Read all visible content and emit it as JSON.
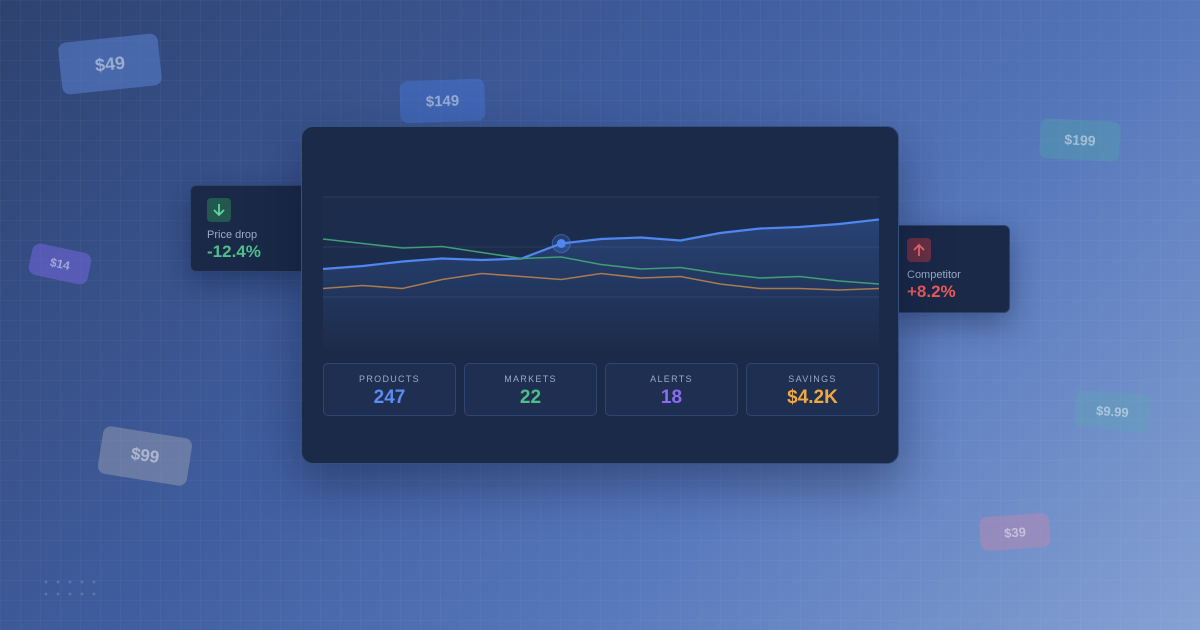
{
  "price_tags": [
    "$49",
    "$149",
    "$199",
    "$14",
    "$99",
    "$9.99",
    "$39"
  ],
  "callouts": [
    {
      "label": "Price drop",
      "value": "-12.4%"
    },
    {
      "label": "Competitor",
      "value": "+8.2%"
    }
  ],
  "chart": {
    "type": "line",
    "ylim": [
      0,
      100
    ],
    "series": [
      {
        "color": "#4f86f0",
        "values": [
          52,
          54,
          57,
          59,
          58,
          59,
          69,
          72,
          73,
          71,
          76,
          79,
          80,
          82,
          85
        ]
      },
      {
        "color": "#3f9e75",
        "values": [
          72,
          69,
          66,
          67,
          63,
          59,
          60,
          55,
          52,
          53,
          49,
          46,
          47,
          44,
          42
        ]
      },
      {
        "color": "#a87a4f",
        "values": [
          39,
          41,
          39,
          45,
          49,
          47,
          45,
          49,
          46,
          47,
          42,
          39,
          39,
          38,
          39
        ]
      }
    ]
  },
  "stats": [
    {
      "label": "PRODUCTS",
      "value": 247,
      "color": "#5b8def"
    },
    {
      "label": "MARKETS",
      "value": 22,
      "color": "#4fbf8a"
    },
    {
      "label": "ALERTS",
      "value": 18,
      "color": "#8b6cf0"
    },
    {
      "label": "SAVINGS",
      "value": "$4.2K",
      "color": "#f0a840"
    }
  ]
}
